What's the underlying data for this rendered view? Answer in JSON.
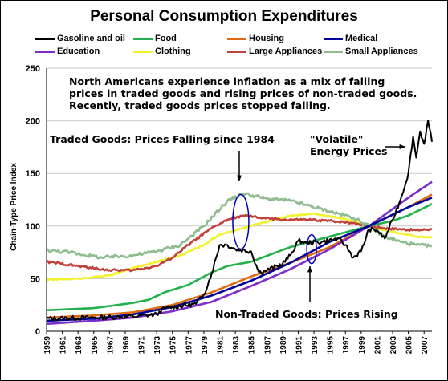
{
  "chart_data": {
    "type": "line",
    "title": "Personal Consumption Expenditures",
    "ylabel": "Chain-Type Price Index",
    "xlabel": "",
    "xlim": [
      1959,
      2008
    ],
    "ylim": [
      0,
      250
    ],
    "yticks": [
      0,
      50,
      100,
      150,
      200,
      250
    ],
    "xticks": [
      1959,
      1961,
      1963,
      1965,
      1967,
      1969,
      1971,
      1973,
      1975,
      1977,
      1979,
      1981,
      1983,
      1985,
      1987,
      1989,
      1991,
      1993,
      1995,
      1997,
      1999,
      2001,
      2003,
      2005,
      2007
    ],
    "grid": true,
    "legend_position": "top",
    "series": [
      {
        "name": "Gasoline and oil",
        "color": "#000000",
        "noise": 2.2,
        "points": [
          [
            1959,
            12
          ],
          [
            1965,
            13
          ],
          [
            1970,
            14
          ],
          [
            1973,
            16
          ],
          [
            1974,
            22
          ],
          [
            1978,
            26
          ],
          [
            1979,
            35
          ],
          [
            1980,
            55
          ],
          [
            1981,
            82
          ],
          [
            1982,
            82
          ],
          [
            1983,
            78
          ],
          [
            1985,
            76
          ],
          [
            1986,
            56
          ],
          [
            1987,
            58
          ],
          [
            1989,
            64
          ],
          [
            1990,
            72
          ],
          [
            1991,
            86
          ],
          [
            1992,
            84
          ],
          [
            1994,
            85
          ],
          [
            1996,
            88
          ],
          [
            1997,
            82
          ],
          [
            1998,
            70
          ],
          [
            1999,
            76
          ],
          [
            2000,
            97
          ],
          [
            2001,
            96
          ],
          [
            2002,
            88
          ],
          [
            2003,
            106
          ],
          [
            2004,
            125
          ],
          [
            2005,
            150
          ],
          [
            2005.6,
            185
          ],
          [
            2006,
            165
          ],
          [
            2006.5,
            190
          ],
          [
            2007,
            178
          ],
          [
            2007.5,
            200
          ],
          [
            2008,
            180
          ]
        ]
      },
      {
        "name": "Food",
        "color": "#22b14c",
        "noise": 0,
        "points": [
          [
            1959,
            20
          ],
          [
            1965,
            22
          ],
          [
            1970,
            27
          ],
          [
            1972,
            30
          ],
          [
            1974,
            37
          ],
          [
            1977,
            44
          ],
          [
            1980,
            56
          ],
          [
            1982,
            62
          ],
          [
            1985,
            66
          ],
          [
            1990,
            80
          ],
          [
            1995,
            90
          ],
          [
            2000,
            100
          ],
          [
            2003,
            105
          ],
          [
            2005,
            110
          ],
          [
            2008,
            121
          ]
        ]
      },
      {
        "name": "Housing",
        "color": "#e06a10",
        "noise": 0,
        "points": [
          [
            1959,
            13
          ],
          [
            1965,
            15
          ],
          [
            1970,
            18
          ],
          [
            1975,
            25
          ],
          [
            1980,
            37
          ],
          [
            1985,
            52
          ],
          [
            1990,
            65
          ],
          [
            1995,
            80
          ],
          [
            2000,
            100
          ],
          [
            2005,
            118
          ],
          [
            2008,
            130
          ]
        ]
      },
      {
        "name": "Medical",
        "color": "#00009a",
        "noise": 0,
        "points": [
          [
            1959,
            10
          ],
          [
            1965,
            12
          ],
          [
            1970,
            16
          ],
          [
            1975,
            23
          ],
          [
            1980,
            34
          ],
          [
            1985,
            48
          ],
          [
            1990,
            65
          ],
          [
            1995,
            85
          ],
          [
            2000,
            100
          ],
          [
            2005,
            118
          ],
          [
            2008,
            127
          ]
        ]
      },
      {
        "name": "Education",
        "color": "#7b2cc9",
        "noise": 0,
        "points": [
          [
            1959,
            7
          ],
          [
            1965,
            10
          ],
          [
            1970,
            13
          ],
          [
            1975,
            19
          ],
          [
            1980,
            28
          ],
          [
            1985,
            43
          ],
          [
            1990,
            59
          ],
          [
            1995,
            78
          ],
          [
            2000,
            100
          ],
          [
            2005,
            127
          ],
          [
            2008,
            142
          ]
        ]
      },
      {
        "name": "Clothing",
        "color": "#f2f22a",
        "noise": 0.6,
        "points": [
          [
            1959,
            49
          ],
          [
            1963,
            50
          ],
          [
            1967,
            53
          ],
          [
            1970,
            60
          ],
          [
            1973,
            66
          ],
          [
            1976,
            72
          ],
          [
            1979,
            82
          ],
          [
            1981,
            92
          ],
          [
            1984,
            98
          ],
          [
            1987,
            104
          ],
          [
            1990,
            110
          ],
          [
            1993,
            112
          ],
          [
            1996,
            108
          ],
          [
            1998,
            105
          ],
          [
            2000,
            100
          ],
          [
            2002,
            96
          ],
          [
            2004,
            93
          ],
          [
            2006,
            90
          ],
          [
            2008,
            89
          ]
        ]
      },
      {
        "name": "Large Appliances",
        "color": "#c0403a",
        "noise": 1.0,
        "points": [
          [
            1959,
            66
          ],
          [
            1963,
            62
          ],
          [
            1967,
            58
          ],
          [
            1970,
            58
          ],
          [
            1973,
            62
          ],
          [
            1975,
            70
          ],
          [
            1977,
            82
          ],
          [
            1980,
            98
          ],
          [
            1982,
            106
          ],
          [
            1984,
            110
          ],
          [
            1986,
            108
          ],
          [
            1989,
            106
          ],
          [
            1992,
            106
          ],
          [
            1995,
            105
          ],
          [
            1998,
            103
          ],
          [
            2000,
            100
          ],
          [
            2002,
            98
          ],
          [
            2004,
            97
          ],
          [
            2006,
            96
          ],
          [
            2008,
            97
          ]
        ]
      },
      {
        "name": "Small Appliances",
        "color": "#8fbc8f",
        "noise": 1.6,
        "points": [
          [
            1959,
            77
          ],
          [
            1962,
            75
          ],
          [
            1966,
            70
          ],
          [
            1970,
            72
          ],
          [
            1973,
            76
          ],
          [
            1976,
            82
          ],
          [
            1979,
            100
          ],
          [
            1982,
            124
          ],
          [
            1984,
            131
          ],
          [
            1987,
            126
          ],
          [
            1990,
            124
          ],
          [
            1992,
            120
          ],
          [
            1995,
            114
          ],
          [
            1998,
            108
          ],
          [
            2000,
            100
          ],
          [
            2002,
            90
          ],
          [
            2004,
            85
          ],
          [
            2006,
            82
          ],
          [
            2008,
            81
          ]
        ]
      }
    ],
    "annotations": [
      {
        "key": "intro",
        "lines": [
          "North Americans experience inflation as a mix of falling",
          "prices in traded goods and rising prices of non-traded goods.",
          "Recently, traded goods prices stopped falling."
        ]
      },
      {
        "key": "traded",
        "lines": [
          "Traded Goods: Prices Falling since 1984"
        ]
      },
      {
        "key": "energy",
        "lines": [
          "\"Volatile\"",
          "Energy Prices"
        ]
      },
      {
        "key": "nontraded",
        "lines": [
          "Non-Traded Goods: Prices Rising"
        ]
      }
    ]
  }
}
